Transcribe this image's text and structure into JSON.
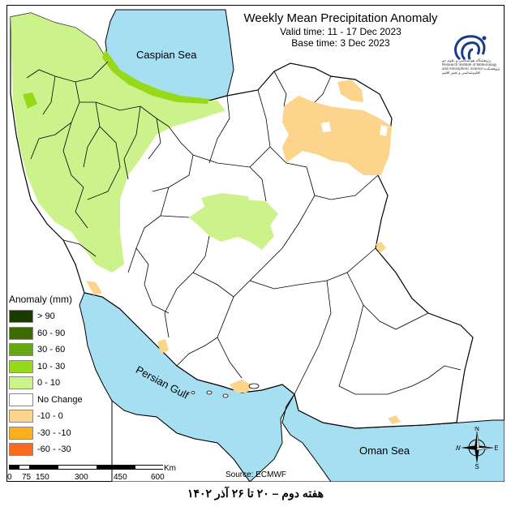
{
  "title": "Weekly Mean Precipitation Anomaly",
  "valid_time": "Valid time: 11 - 17 Dec 2023",
  "base_time": "Base time: 3 Dec 2023",
  "seas": {
    "caspian": "Caspian Sea",
    "gulf": "Persian Gulf",
    "oman": "Oman Sea"
  },
  "legend": {
    "title": "Anomaly (mm)",
    "items": [
      {
        "label": "> 90",
        "color": "#1a3a00"
      },
      {
        "label": "60 - 90",
        "color": "#3d6b00"
      },
      {
        "label": "30 - 60",
        "color": "#66a80f"
      },
      {
        "label": "10 - 30",
        "color": "#96d918"
      },
      {
        "label": "0 - 10",
        "color": "#ccf28c"
      },
      {
        "label": "No Change",
        "color": "#ffffff"
      },
      {
        "label": "-10 - 0",
        "color": "#fcd48c"
      },
      {
        "label": "-30 - -10",
        "color": "#fcae1e"
      },
      {
        "label": "-60 - -30",
        "color": "#fc6a1e"
      }
    ]
  },
  "scale": {
    "ticks": [
      "0",
      "75",
      "150",
      "300",
      "450",
      "600"
    ],
    "unit": "Km"
  },
  "source": "Source: ECMWF",
  "caption": "هفته دوم – ۲۰ تا ۲۶ آذر ۱۴۰۲",
  "compass": {
    "n": "N",
    "s": "S",
    "e": "E",
    "w": "W"
  },
  "logo_text": "پژوهشگاه هواشناسی و علوم جو Research Institute of Meteorology and Atmospheric Science پژوهشکده اقلیم‌شناسی و تغییر اقلیم",
  "colors": {
    "water": "#a6def2",
    "land": "#ffffff",
    "dry": "#fcd48c",
    "wet_light": "#ccf28c",
    "wet_mid": "#96d918"
  }
}
